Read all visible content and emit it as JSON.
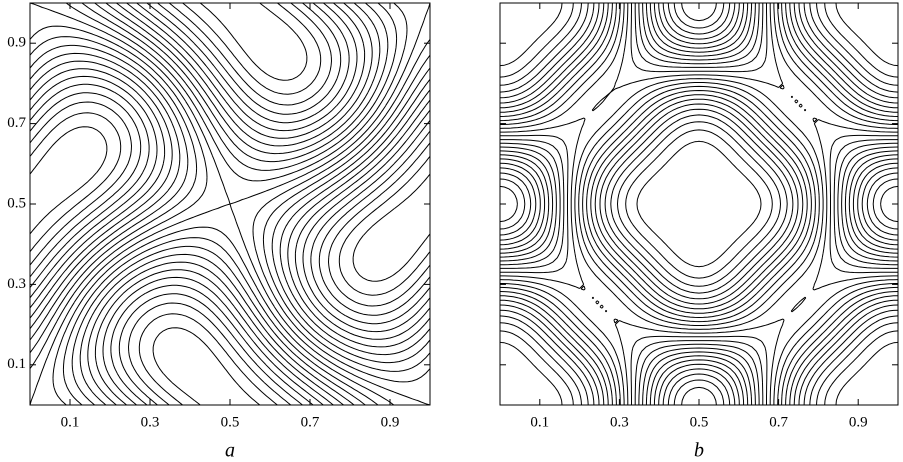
{
  "chart_data": [
    {
      "type": "contour",
      "label": "a",
      "xlim": [
        0,
        1
      ],
      "ylim": [
        0,
        1
      ],
      "xticks": [
        0.1,
        0.3,
        0.5,
        0.7,
        0.9
      ],
      "yticks": [
        0.1,
        0.3,
        0.5,
        0.7,
        0.9
      ]
    },
    {
      "type": "contour",
      "label": "b",
      "xlim": [
        0,
        1
      ],
      "ylim": [
        0,
        1
      ],
      "xticks": [
        0.1,
        0.3,
        0.5,
        0.7,
        0.9
      ],
      "yticks": [
        0.1,
        0.3,
        0.5,
        0.7,
        0.9
      ]
    }
  ]
}
